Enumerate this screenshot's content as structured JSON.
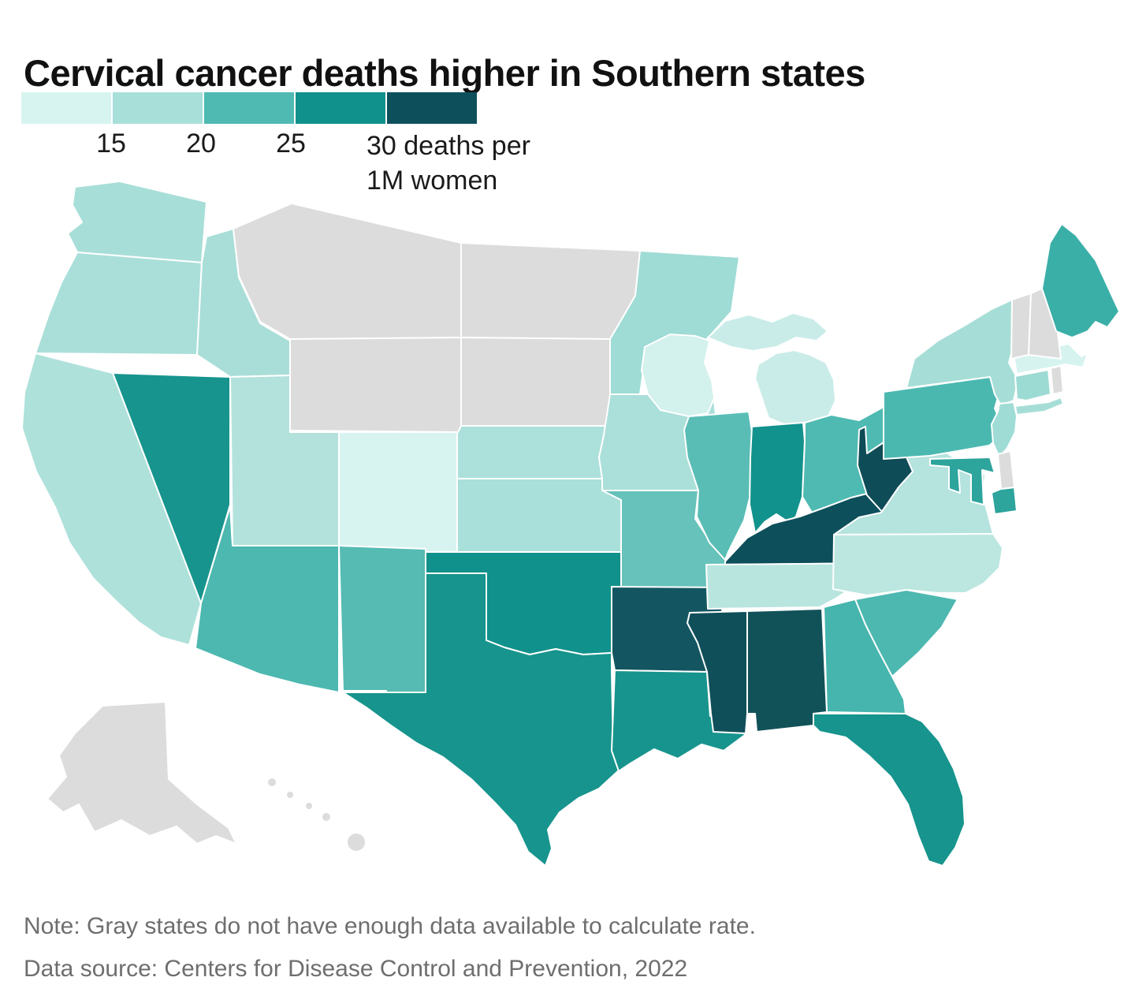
{
  "title": "Cervical cancer deaths higher in Southern states",
  "legend": {
    "ticks": [
      "15",
      "20",
      "25"
    ],
    "end_label_lines": [
      "30 deaths per",
      "1M women"
    ],
    "bucket_colors": [
      "#d7f4f0",
      "#a8dfd9",
      "#4fbab2",
      "#11918b",
      "#0d505b"
    ],
    "no_data_color": "#dcdcdc",
    "unit": "deaths per 1M women"
  },
  "notes": {
    "note": "Note: Gray states do not have enough data available to calculate rate.",
    "source": "Data source: Centers for Disease Control and Prevention, 2022"
  },
  "chart_data": {
    "type": "choropleth-map",
    "title": "Cervical cancer deaths higher in Southern states",
    "unit": "deaths per 1M women",
    "scale_ticks": [
      15,
      20,
      25,
      30
    ],
    "legend_position": "top-left",
    "series": "map.states"
  },
  "map": {
    "border_color": "#ffffff",
    "background": "#ffffff",
    "states": [
      {
        "id": "WA",
        "name": "Washington",
        "range": "15–20",
        "color": "#a8ded8"
      },
      {
        "id": "OR",
        "name": "Oregon",
        "range": "15–20",
        "color": "#aadfd9"
      },
      {
        "id": "CA",
        "name": "California",
        "range": "15–20",
        "color": "#aee1da"
      },
      {
        "id": "NV",
        "name": "Nevada",
        "range": "25–30",
        "color": "#17948d"
      },
      {
        "id": "ID",
        "name": "Idaho",
        "range": "15–20",
        "color": "#a9ded8"
      },
      {
        "id": "MT",
        "name": "Montana",
        "range": "No data",
        "color": "#dcdcdc"
      },
      {
        "id": "WY",
        "name": "Wyoming",
        "range": "No data",
        "color": "#dcdcdc"
      },
      {
        "id": "UT",
        "name": "Utah",
        "range": "15–20",
        "color": "#b3e2dc"
      },
      {
        "id": "CO",
        "name": "Colorado",
        "range": "Under 15",
        "color": "#d8f4f0"
      },
      {
        "id": "AZ",
        "name": "Arizona",
        "range": "20–25",
        "color": "#4db8b0"
      },
      {
        "id": "NM",
        "name": "New Mexico",
        "range": "20–25",
        "color": "#55bbb3"
      },
      {
        "id": "ND",
        "name": "North Dakota",
        "range": "No data",
        "color": "#dcdcdc"
      },
      {
        "id": "SD",
        "name": "South Dakota",
        "range": "No data",
        "color": "#dcdcdc"
      },
      {
        "id": "NE",
        "name": "Nebraska",
        "range": "15–20",
        "color": "#ace0da"
      },
      {
        "id": "KS",
        "name": "Kansas",
        "range": "15–20",
        "color": "#a9e0da"
      },
      {
        "id": "OK",
        "name": "Oklahoma",
        "range": "25–30",
        "color": "#11918b"
      },
      {
        "id": "TX",
        "name": "Texas",
        "range": "25–30",
        "color": "#16948d"
      },
      {
        "id": "MN",
        "name": "Minnesota",
        "range": "15–20",
        "color": "#9edcd5"
      },
      {
        "id": "IA",
        "name": "Iowa",
        "range": "15–20",
        "color": "#abdfd9"
      },
      {
        "id": "MO",
        "name": "Missouri",
        "range": "20–25",
        "color": "#66c2ba"
      },
      {
        "id": "AR",
        "name": "Arkansas",
        "range": "30+",
        "color": "#135661"
      },
      {
        "id": "LA",
        "name": "Louisiana",
        "range": "25–30",
        "color": "#17948d"
      },
      {
        "id": "WI",
        "name": "Wisconsin",
        "range": "Under 15",
        "color": "#d3f1ed"
      },
      {
        "id": "IL",
        "name": "Illinois",
        "range": "20–25",
        "color": "#59bdb5"
      },
      {
        "id": "MS",
        "name": "Mississippi",
        "range": "30+",
        "color": "#0f4f59"
      },
      {
        "id": "MI",
        "name": "Michigan",
        "range": "15–20",
        "color": "#c9ece8"
      },
      {
        "id": "IN",
        "name": "Indiana",
        "range": "25–30",
        "color": "#12928c"
      },
      {
        "id": "OH",
        "name": "Ohio",
        "range": "20–25",
        "color": "#4fbab2"
      },
      {
        "id": "KY",
        "name": "Kentucky",
        "range": "30+",
        "color": "#0d4f5a"
      },
      {
        "id": "WV",
        "name": "West Virginia",
        "range": "30+",
        "color": "#0e4c57"
      },
      {
        "id": "TN",
        "name": "Tennessee",
        "range": "15–20",
        "color": "#b9e5df"
      },
      {
        "id": "AL",
        "name": "Alabama",
        "range": "30+",
        "color": "#115259"
      },
      {
        "id": "GA",
        "name": "Georgia",
        "range": "20–25",
        "color": "#45b5ad"
      },
      {
        "id": "FL",
        "name": "Florida",
        "range": "25–30",
        "color": "#16948d"
      },
      {
        "id": "SC",
        "name": "South Carolina",
        "range": "20–25",
        "color": "#4db8b0"
      },
      {
        "id": "NC",
        "name": "North Carolina",
        "range": "15–20",
        "color": "#bce6e0"
      },
      {
        "id": "VA",
        "name": "Virginia",
        "range": "15–20",
        "color": "#b5e3dd"
      },
      {
        "id": "MD",
        "name": "Maryland",
        "range": "20–25",
        "color": "#2da49c"
      },
      {
        "id": "DE",
        "name": "Delaware",
        "range": "No data",
        "color": "#dcdcdc"
      },
      {
        "id": "PA",
        "name": "Pennsylvania",
        "range": "20–25",
        "color": "#4bb8b0"
      },
      {
        "id": "NJ",
        "name": "New Jersey",
        "range": "15–20",
        "color": "#9edcd5"
      },
      {
        "id": "NY",
        "name": "New York",
        "range": "15–20",
        "color": "#a6ded7"
      },
      {
        "id": "CT",
        "name": "Connecticut",
        "range": "15–20",
        "color": "#9cdbd4"
      },
      {
        "id": "RI",
        "name": "Rhode Island",
        "range": "No data",
        "color": "#dcdcdc"
      },
      {
        "id": "MA",
        "name": "Massachusetts",
        "range": "Under 15",
        "color": "#d6f3ef"
      },
      {
        "id": "VT",
        "name": "Vermont",
        "range": "No data",
        "color": "#dcdcdc"
      },
      {
        "id": "NH",
        "name": "New Hampshire",
        "range": "No data",
        "color": "#dcdcdc"
      },
      {
        "id": "ME",
        "name": "Maine",
        "range": "20–25",
        "color": "#3aafa7"
      },
      {
        "id": "AK",
        "name": "Alaska",
        "range": "No data",
        "color": "#dcdcdc"
      },
      {
        "id": "HI",
        "name": "Hawaii",
        "range": "No data",
        "color": "#dcdcdc"
      }
    ]
  }
}
